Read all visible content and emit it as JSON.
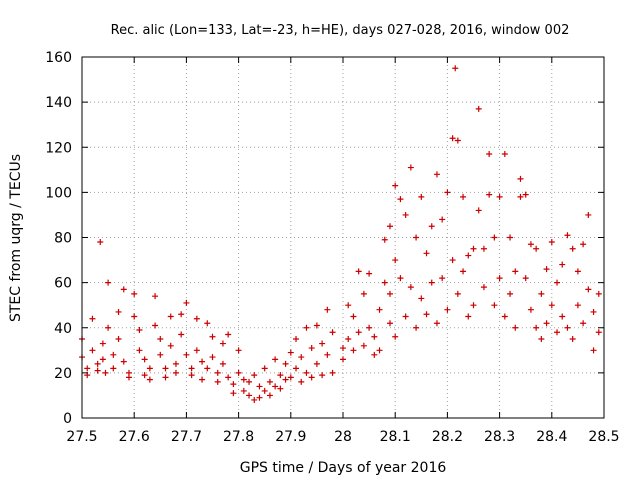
{
  "chart_data": {
    "type": "scatter",
    "title": "Rec. alic (Lon=133, Lat=-23, h=HE), days 027-028, 2016, window 002",
    "xlabel": "GPS time / Days of year 2016",
    "ylabel": "STEC from uqrg / TECUs",
    "xlim": [
      27.5,
      28.5
    ],
    "ylim": [
      0,
      160
    ],
    "xticks": [
      27.5,
      27.6,
      27.7,
      27.8,
      27.9,
      28.0,
      28.1,
      28.2,
      28.3,
      28.4,
      28.5
    ],
    "xtick_labels": [
      "27.5",
      "27.6",
      "27.7",
      "27.8",
      "27.9",
      "28",
      "28.1",
      "28.2",
      "28.3",
      "28.4",
      "28.5"
    ],
    "yticks": [
      0,
      20,
      40,
      60,
      80,
      100,
      120,
      140,
      160
    ],
    "ytick_labels": [
      "0",
      "20",
      "40",
      "60",
      "80",
      "100",
      "120",
      "140",
      "160"
    ],
    "grid": true,
    "marker": "plus",
    "marker_color": "#cc0000",
    "series": [
      {
        "name": "",
        "points": [
          [
            27.5,
            35
          ],
          [
            27.5,
            27
          ],
          [
            27.51,
            22
          ],
          [
            27.51,
            19
          ],
          [
            27.52,
            44
          ],
          [
            27.52,
            30
          ],
          [
            27.53,
            24
          ],
          [
            27.53,
            21
          ],
          [
            27.535,
            78
          ],
          [
            27.54,
            33
          ],
          [
            27.54,
            26
          ],
          [
            27.545,
            20
          ],
          [
            27.55,
            60
          ],
          [
            27.55,
            40
          ],
          [
            27.56,
            28
          ],
          [
            27.56,
            22
          ],
          [
            27.57,
            47
          ],
          [
            27.57,
            35
          ],
          [
            27.58,
            57
          ],
          [
            27.58,
            25
          ],
          [
            27.59,
            20
          ],
          [
            27.59,
            18
          ],
          [
            27.6,
            55
          ],
          [
            27.6,
            45
          ],
          [
            27.61,
            39
          ],
          [
            27.61,
            30
          ],
          [
            27.62,
            26
          ],
          [
            27.62,
            19
          ],
          [
            27.63,
            22
          ],
          [
            27.63,
            17
          ],
          [
            27.64,
            54
          ],
          [
            27.64,
            41
          ],
          [
            27.65,
            35
          ],
          [
            27.65,
            28
          ],
          [
            27.66,
            22
          ],
          [
            27.66,
            18
          ],
          [
            27.67,
            45
          ],
          [
            27.67,
            32
          ],
          [
            27.68,
            24
          ],
          [
            27.68,
            20
          ],
          [
            27.69,
            46
          ],
          [
            27.69,
            37
          ],
          [
            27.7,
            51
          ],
          [
            27.7,
            28
          ],
          [
            27.71,
            22
          ],
          [
            27.71,
            19
          ],
          [
            27.72,
            44
          ],
          [
            27.72,
            30
          ],
          [
            27.73,
            25
          ],
          [
            27.73,
            17
          ],
          [
            27.74,
            42
          ],
          [
            27.74,
            22
          ],
          [
            27.75,
            36
          ],
          [
            27.75,
            27
          ],
          [
            27.76,
            20
          ],
          [
            27.76,
            16
          ],
          [
            27.77,
            33
          ],
          [
            27.77,
            24
          ],
          [
            27.78,
            37
          ],
          [
            27.78,
            18
          ],
          [
            27.79,
            15
          ],
          [
            27.79,
            11
          ],
          [
            27.8,
            30
          ],
          [
            27.8,
            20
          ],
          [
            27.81,
            17
          ],
          [
            27.81,
            12
          ],
          [
            27.82,
            16
          ],
          [
            27.82,
            10
          ],
          [
            27.83,
            19
          ],
          [
            27.83,
            8
          ],
          [
            27.84,
            14
          ],
          [
            27.84,
            9
          ],
          [
            27.85,
            22
          ],
          [
            27.85,
            12
          ],
          [
            27.86,
            16
          ],
          [
            27.86,
            10
          ],
          [
            27.87,
            26
          ],
          [
            27.87,
            14
          ],
          [
            27.88,
            19
          ],
          [
            27.88,
            13
          ],
          [
            27.89,
            24
          ],
          [
            27.89,
            17
          ],
          [
            27.9,
            29
          ],
          [
            27.9,
            18
          ],
          [
            27.91,
            35
          ],
          [
            27.91,
            22
          ],
          [
            27.92,
            27
          ],
          [
            27.92,
            16
          ],
          [
            27.93,
            40
          ],
          [
            27.93,
            20
          ],
          [
            27.94,
            31
          ],
          [
            27.94,
            18
          ],
          [
            27.95,
            41
          ],
          [
            27.95,
            24
          ],
          [
            27.96,
            33
          ],
          [
            27.96,
            19
          ],
          [
            27.97,
            48
          ],
          [
            27.97,
            28
          ],
          [
            27.98,
            38
          ],
          [
            27.98,
            20
          ],
          [
            28.0,
            31
          ],
          [
            28.0,
            26
          ],
          [
            28.01,
            50
          ],
          [
            28.01,
            35
          ],
          [
            28.02,
            45
          ],
          [
            28.02,
            30
          ],
          [
            28.03,
            65
          ],
          [
            28.03,
            38
          ],
          [
            28.04,
            55
          ],
          [
            28.04,
            32
          ],
          [
            28.05,
            64
          ],
          [
            28.05,
            40
          ],
          [
            28.06,
            36
          ],
          [
            28.06,
            28
          ],
          [
            28.07,
            48
          ],
          [
            28.07,
            30
          ],
          [
            28.08,
            79
          ],
          [
            28.08,
            60
          ],
          [
            28.09,
            85
          ],
          [
            28.09,
            55
          ],
          [
            28.09,
            42
          ],
          [
            28.1,
            103
          ],
          [
            28.1,
            70
          ],
          [
            28.1,
            36
          ],
          [
            28.11,
            97
          ],
          [
            28.11,
            62
          ],
          [
            28.12,
            90
          ],
          [
            28.12,
            45
          ],
          [
            28.13,
            111
          ],
          [
            28.13,
            58
          ],
          [
            28.14,
            80
          ],
          [
            28.14,
            40
          ],
          [
            28.15,
            98
          ],
          [
            28.15,
            53
          ],
          [
            28.16,
            73
          ],
          [
            28.16,
            46
          ],
          [
            28.17,
            85
          ],
          [
            28.17,
            60
          ],
          [
            28.18,
            108
          ],
          [
            28.18,
            42
          ],
          [
            28.19,
            88
          ],
          [
            28.19,
            62
          ],
          [
            28.2,
            100
          ],
          [
            28.2,
            48
          ],
          [
            28.21,
            124
          ],
          [
            28.21,
            70
          ],
          [
            28.215,
            155
          ],
          [
            28.22,
            123
          ],
          [
            28.22,
            55
          ],
          [
            28.23,
            98
          ],
          [
            28.23,
            65
          ],
          [
            28.24,
            72
          ],
          [
            28.24,
            45
          ],
          [
            28.25,
            75
          ],
          [
            28.25,
            50
          ],
          [
            28.26,
            137
          ],
          [
            28.26,
            92
          ],
          [
            28.27,
            75
          ],
          [
            28.27,
            58
          ],
          [
            28.28,
            117
          ],
          [
            28.28,
            99
          ],
          [
            28.29,
            80
          ],
          [
            28.29,
            50
          ],
          [
            28.3,
            98
          ],
          [
            28.3,
            62
          ],
          [
            28.31,
            117
          ],
          [
            28.31,
            45
          ],
          [
            28.32,
            80
          ],
          [
            28.32,
            55
          ],
          [
            28.33,
            65
          ],
          [
            28.33,
            40
          ],
          [
            28.34,
            106
          ],
          [
            28.34,
            98
          ],
          [
            28.35,
            99
          ],
          [
            28.35,
            62
          ],
          [
            28.36,
            77
          ],
          [
            28.36,
            48
          ],
          [
            28.37,
            75
          ],
          [
            28.37,
            40
          ],
          [
            28.38,
            55
          ],
          [
            28.38,
            35
          ],
          [
            28.39,
            66
          ],
          [
            28.39,
            42
          ],
          [
            28.4,
            78
          ],
          [
            28.4,
            50
          ],
          [
            28.41,
            60
          ],
          [
            28.41,
            38
          ],
          [
            28.42,
            68
          ],
          [
            28.42,
            45
          ],
          [
            28.43,
            81
          ],
          [
            28.43,
            40
          ],
          [
            28.44,
            75
          ],
          [
            28.44,
            35
          ],
          [
            28.45,
            65
          ],
          [
            28.45,
            50
          ],
          [
            28.46,
            77
          ],
          [
            28.46,
            42
          ],
          [
            28.47,
            90
          ],
          [
            28.47,
            57
          ],
          [
            28.48,
            47
          ],
          [
            28.48,
            30
          ],
          [
            28.49,
            55
          ],
          [
            28.49,
            38
          ]
        ]
      }
    ]
  }
}
